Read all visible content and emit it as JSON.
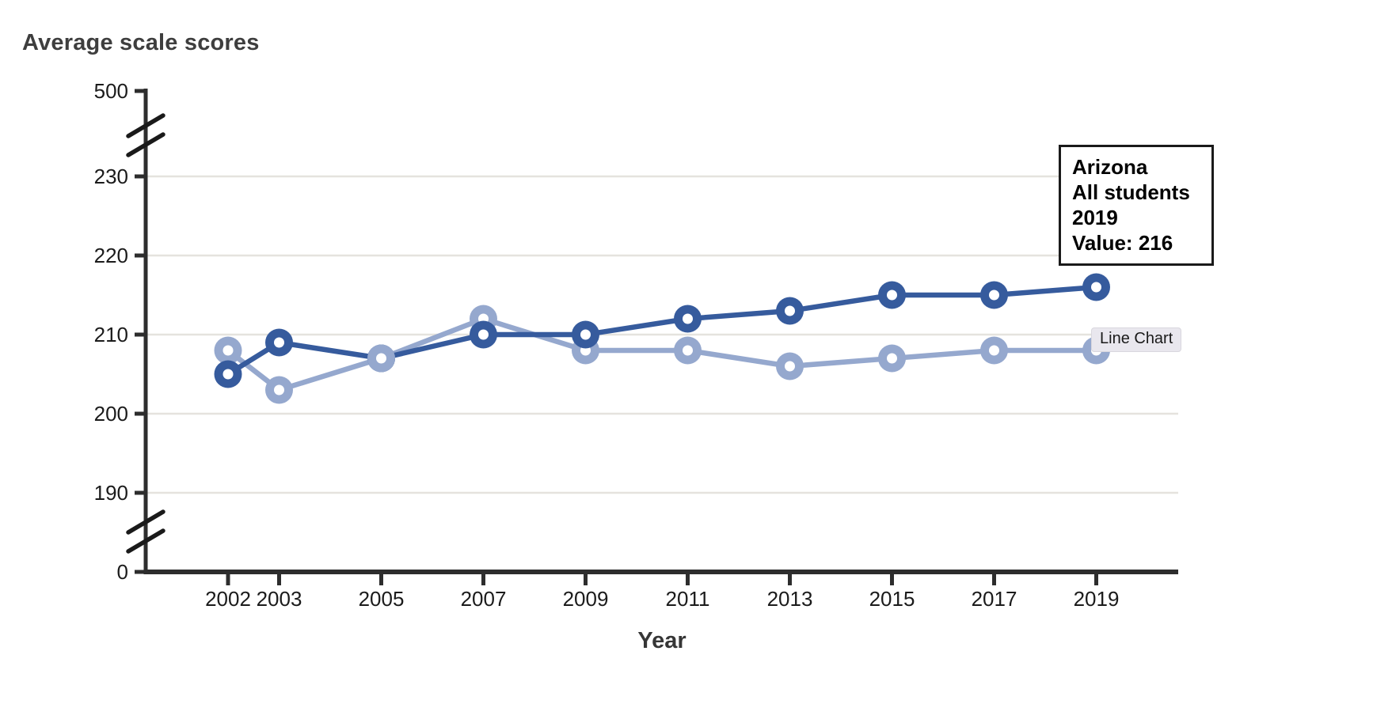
{
  "chart": {
    "title": "Average scale scores",
    "x_axis_title": "Year"
  },
  "chart_data": {
    "type": "line",
    "title": "Average scale scores",
    "xlabel": "Year",
    "ylabel": "Average scale scores",
    "x": [
      2002,
      2003,
      2005,
      2007,
      2009,
      2011,
      2013,
      2015,
      2017,
      2019
    ],
    "series": [
      {
        "id": "focal-dark-line",
        "color": "#365b9d",
        "values": [
          205,
          209,
          207,
          210,
          210,
          212,
          213,
          215,
          215,
          216
        ]
      },
      {
        "id": "comparison-light-line",
        "color": "#95a8ce",
        "values": [
          208,
          203,
          207,
          212,
          208,
          208,
          206,
          207,
          208,
          208
        ]
      }
    ],
    "y_ticks": [
      {
        "value": 0,
        "label": "0"
      },
      {
        "value": 190,
        "label": "190"
      },
      {
        "value": 200,
        "label": "200"
      },
      {
        "value": 210,
        "label": "210"
      },
      {
        "value": 220,
        "label": "220"
      },
      {
        "value": 230,
        "label": "230"
      },
      {
        "value": 500,
        "label": "500"
      }
    ],
    "gridline_values": [
      190,
      200,
      210,
      220,
      230
    ],
    "axis_breaks": [
      "between 0 and 190",
      "between 230 and 500"
    ],
    "grid": true,
    "legend": "none",
    "marker": "open-circle",
    "ylim_visible_segment": [
      185,
      235
    ]
  },
  "tooltip": {
    "lines": [
      "Arizona",
      "All students",
      "2019",
      "Value: 216"
    ],
    "background": "#ffffff",
    "border_color": "#1a1a1a"
  },
  "badge": {
    "label": "Line Chart",
    "background": "#e9e7ee"
  },
  "colors": {
    "axis": "#2d2d2d",
    "tick_label": "#1b1b1b",
    "gridline": "#e5e3de",
    "title": "#3e3e3e",
    "marker_hole": "#ffffff"
  }
}
